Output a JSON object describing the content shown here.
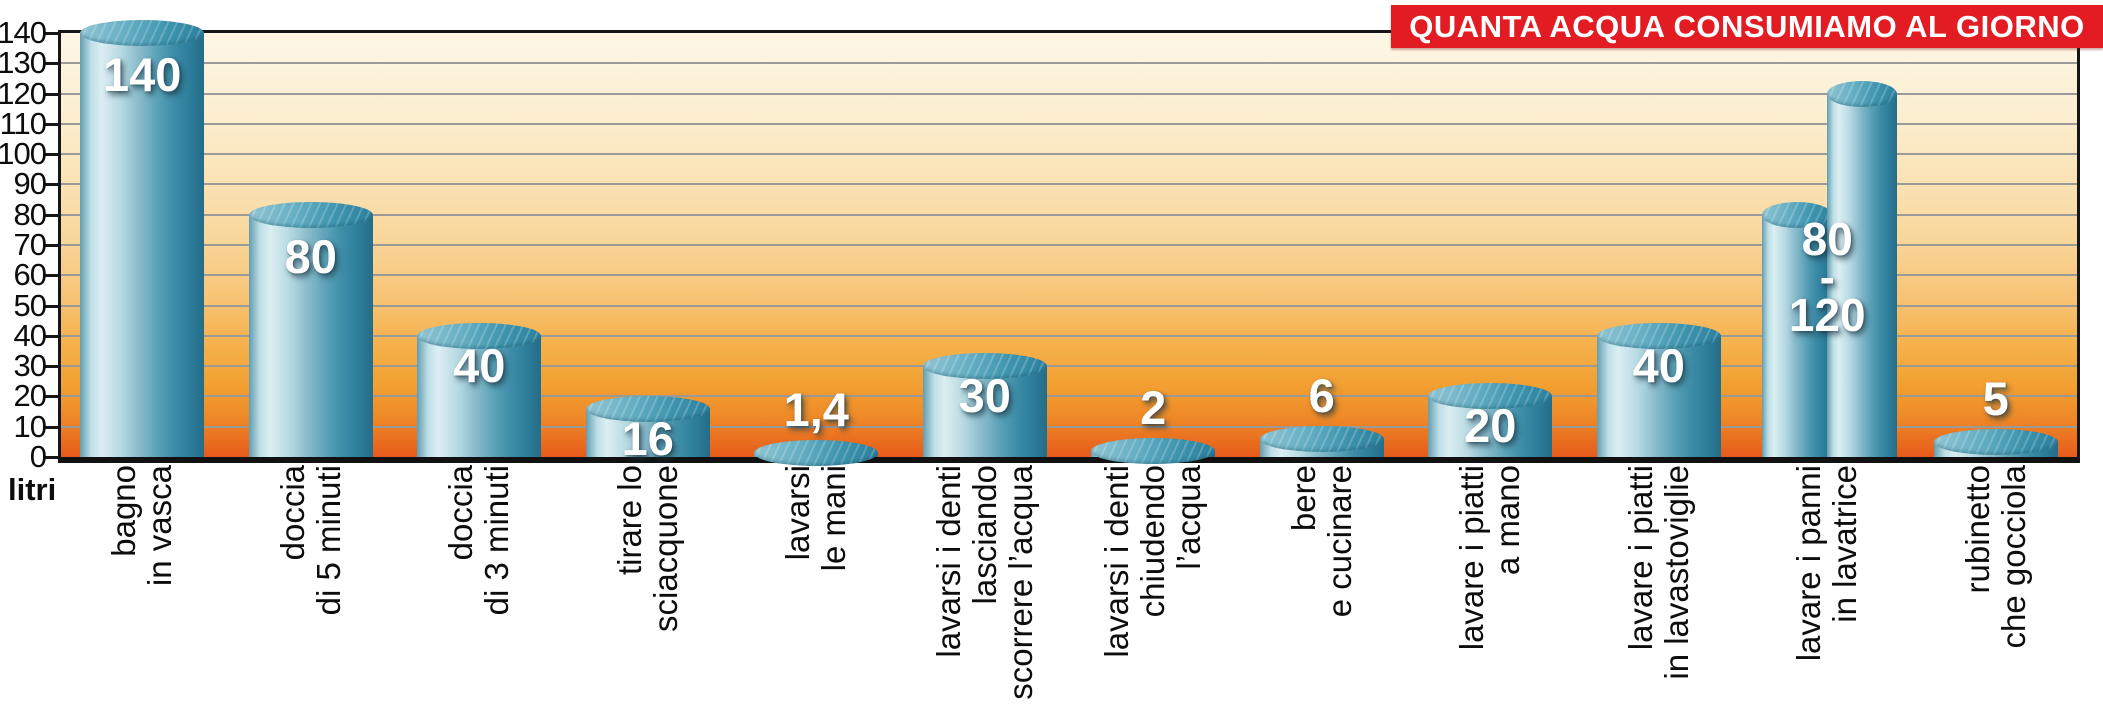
{
  "title_banner": {
    "text": "QUANTA ACQUA CONSUMIAMO AL GIORNO",
    "bg_color": "#e31b22",
    "text_color": "#ffffff"
  },
  "axis": {
    "unit_label": "litri",
    "tick_color": "#0d0d0d",
    "gridline_color": "#9a9a98"
  },
  "colors": {
    "cylinder_light": "#dceef2",
    "cylinder_dark": "#256c87",
    "cylinder_top": "#3d93ad",
    "background_top": "#fdf7e5",
    "background_bottom": "#e65a1c",
    "value_text": "#ffffff"
  },
  "chart_data": {
    "type": "bar",
    "title": "QUANTA ACQUA CONSUMIAMO AL GIORNO",
    "xlabel": "",
    "ylabel": "litri",
    "ylim": [
      0,
      140
    ],
    "ytick_step": 10,
    "yticks": [
      0,
      10,
      20,
      30,
      40,
      50,
      60,
      70,
      80,
      90,
      100,
      110,
      120,
      130,
      140
    ],
    "grid": true,
    "legend": false,
    "bars": [
      {
        "category": "bagno in vasca",
        "label_lines": "bagno\nin vasca",
        "value": 140,
        "value_label": "140",
        "label_placement": "inside"
      },
      {
        "category": "doccia di 5 minuti",
        "label_lines": "doccia\ndi 5 minuti",
        "value": 80,
        "value_label": "80",
        "label_placement": "inside"
      },
      {
        "category": "doccia di 3 minuti",
        "label_lines": "doccia\ndi 3 minuti",
        "value": 40,
        "value_label": "40",
        "label_placement": "inside"
      },
      {
        "category": "tirare lo sciacquone",
        "label_lines": "tirare lo\nsciacquone",
        "value": 16,
        "value_label": "16",
        "label_placement": "inside"
      },
      {
        "category": "lavarsi le mani",
        "label_lines": "lavarsi\nle mani",
        "value": 1.4,
        "value_label": "1,4",
        "label_placement": "above"
      },
      {
        "category": "lavarsi i denti lasciando scorrere l’acqua",
        "label_lines": "lavarsi i denti\nlasciando\nscorrere l’acqua",
        "value": 30,
        "value_label": "30",
        "label_placement": "inside"
      },
      {
        "category": "lavarsi i denti chiudendo l’acqua",
        "label_lines": "lavarsi i denti\nchiudendo\nl’acqua",
        "value": 2,
        "value_label": "2",
        "label_placement": "above"
      },
      {
        "category": "bere e cucinare",
        "label_lines": "bere\ne cucinare",
        "value": 6,
        "value_label": "6",
        "label_placement": "above"
      },
      {
        "category": "lavare i piatti a mano",
        "label_lines": "lavare i piatti\na mano",
        "value": 20,
        "value_label": "20",
        "label_placement": "inside"
      },
      {
        "category": "lavare i piatti in lavastoviglie",
        "label_lines": "lavare i piatti\nin lavastoviglie",
        "value": 40,
        "value_label": "40",
        "label_placement": "inside"
      },
      {
        "category": "lavare i panni in lavatrice",
        "label_lines": "lavare i panni\nin lavatrice",
        "value": [
          80,
          120
        ],
        "value_label": "80\n-\n120",
        "label_placement": "overlay"
      },
      {
        "category": "rubinetto che gocciola",
        "label_lines": "rubinetto\nche gocciola",
        "value": 5,
        "value_label": "5",
        "label_placement": "above"
      }
    ]
  }
}
